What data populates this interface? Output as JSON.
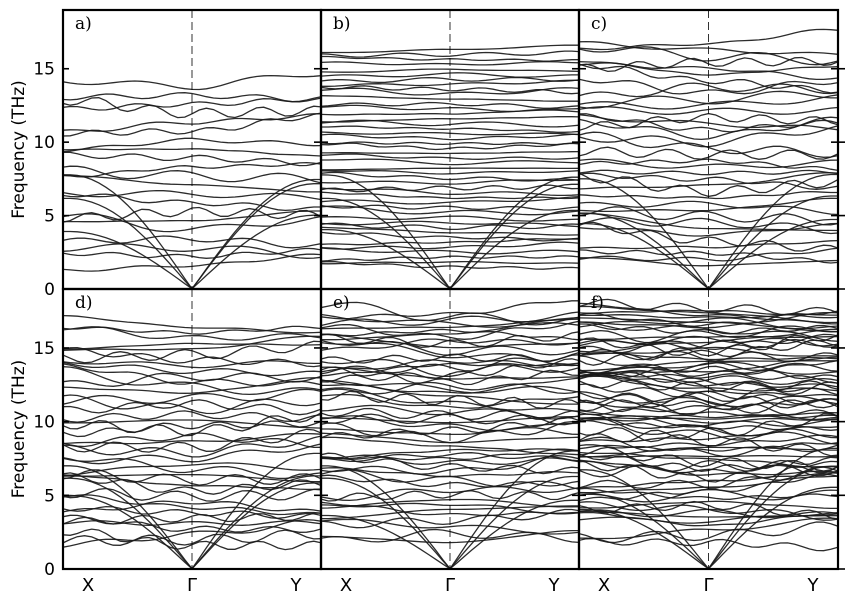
{
  "chart_data": {
    "type": "line",
    "ylabel": "Frequency (THz)",
    "ylim": [
      0,
      19
    ],
    "yticks": [
      0,
      5,
      10,
      15
    ],
    "xticks": [
      "X",
      "Γ",
      "Y"
    ],
    "grid": false,
    "line_color": "#1a1a1a",
    "panels": [
      {
        "label": "a)",
        "row": 0,
        "col": 0,
        "seed": 11,
        "n_bands": 24,
        "n_acoustic": 3,
        "max_freq": 14.6,
        "density": "sparse"
      },
      {
        "label": "b)",
        "row": 0,
        "col": 1,
        "seed": 23,
        "n_bands": 48,
        "n_acoustic": 3,
        "max_freq": 16.8,
        "density": "flat"
      },
      {
        "label": "c)",
        "row": 0,
        "col": 2,
        "seed": 37,
        "n_bands": 40,
        "n_acoustic": 3,
        "max_freq": 17.5,
        "density": "medium"
      },
      {
        "label": "d)",
        "row": 1,
        "col": 0,
        "seed": 41,
        "n_bands": 44,
        "n_acoustic": 3,
        "max_freq": 17.2,
        "density": "medium"
      },
      {
        "label": "e)",
        "row": 1,
        "col": 1,
        "seed": 53,
        "n_bands": 60,
        "n_acoustic": 3,
        "max_freq": 17.9,
        "density": "dense"
      },
      {
        "label": "f)",
        "row": 1,
        "col": 2,
        "seed": 67,
        "n_bands": 84,
        "n_acoustic": 3,
        "max_freq": 18.3,
        "density": "very-dense"
      }
    ]
  }
}
